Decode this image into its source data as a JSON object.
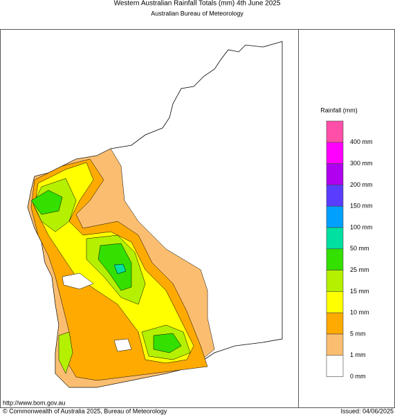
{
  "header": {
    "title": "Western Australian Rainfall Totals (mm) 4th June 2025",
    "subtitle": "Australian Bureau of Meteorology"
  },
  "legend": {
    "title": "Rainfall (mm)",
    "items": [
      {
        "label": "400 mm",
        "color": "#ff4fa8"
      },
      {
        "label": "300 mm",
        "color": "#ff00ff"
      },
      {
        "label": "200 mm",
        "color": "#b000f0"
      },
      {
        "label": "150 mm",
        "color": "#5a3cff"
      },
      {
        "label": "100 mm",
        "color": "#00a0ff"
      },
      {
        "label": "50 mm",
        "color": "#00e0a0"
      },
      {
        "label": "25 mm",
        "color": "#33e000"
      },
      {
        "label": "15 mm",
        "color": "#b4f000"
      },
      {
        "label": "10 mm",
        "color": "#ffff00"
      },
      {
        "label": "5 mm",
        "color": "#ffaa00"
      },
      {
        "label": "1 mm",
        "color": "#fbbe70"
      },
      {
        "label": "0 mm",
        "color": "#ffffff"
      }
    ]
  },
  "footer": {
    "url": "http://www.bom.gov.au",
    "copyright": "© Commonwealth of Australia 2025, Bureau of Meteorology",
    "issued": "Issued: 04/06/2025"
  }
}
